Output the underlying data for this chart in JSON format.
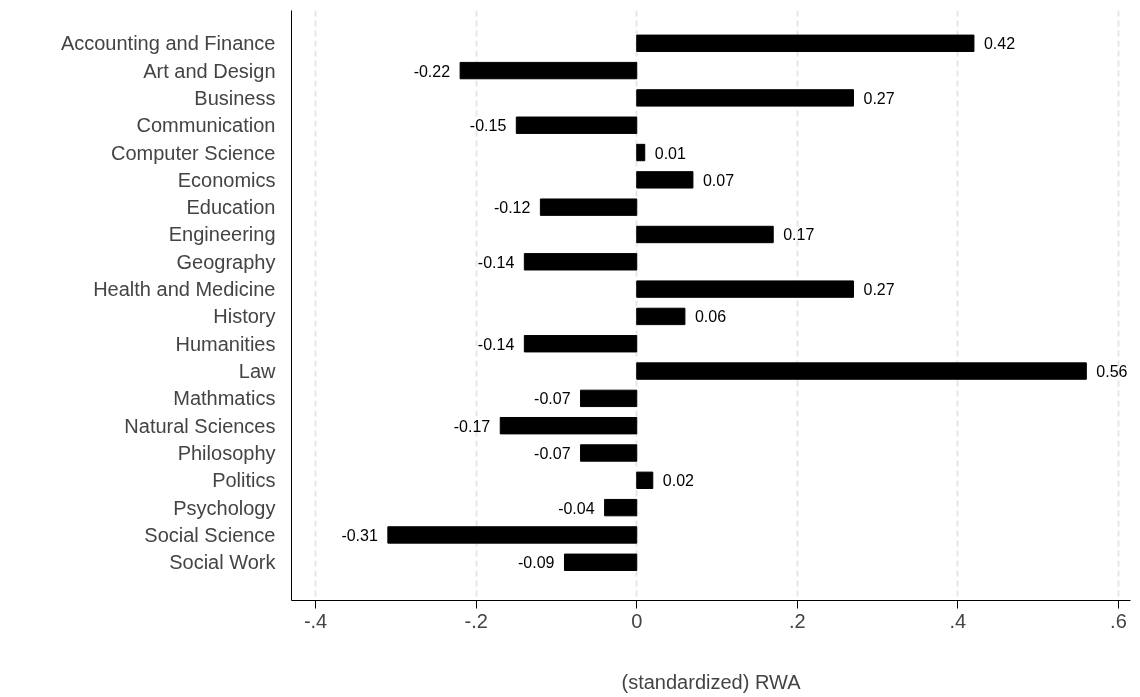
{
  "chart_data": {
    "type": "bar",
    "orientation": "horizontal",
    "xlabel": "(standardized) RWA",
    "categories": [
      "Accounting and Finance",
      "Art and Design",
      "Business",
      "Communication",
      "Computer Science",
      "Economics",
      "Education",
      "Engineering",
      "Geography",
      "Health and Medicine",
      "History",
      "Humanities",
      "Law",
      "Mathmatics",
      "Natural Sciences",
      "Philosophy",
      "Politics",
      "Psychology",
      "Social Science",
      "Social Work"
    ],
    "values": [
      0.42,
      -0.22,
      0.27,
      -0.15,
      0.01,
      0.07,
      -0.12,
      0.17,
      -0.14,
      0.27,
      0.06,
      -0.14,
      0.56,
      -0.07,
      -0.17,
      -0.07,
      0.02,
      -0.04,
      -0.31,
      -0.09
    ],
    "color": "#000000",
    "data_labels": true,
    "xlim": [
      -0.43,
      0.615
    ],
    "xticks": [
      {
        "value": -0.4,
        "label": "-.4"
      },
      {
        "value": -0.2,
        "label": "-.2"
      },
      0,
      {
        "value": 0.2,
        "label": ".2"
      },
      {
        "value": 0.4,
        "label": ".4"
      },
      {
        "value": 0.6,
        "label": ".6"
      }
    ],
    "grid": "x"
  }
}
